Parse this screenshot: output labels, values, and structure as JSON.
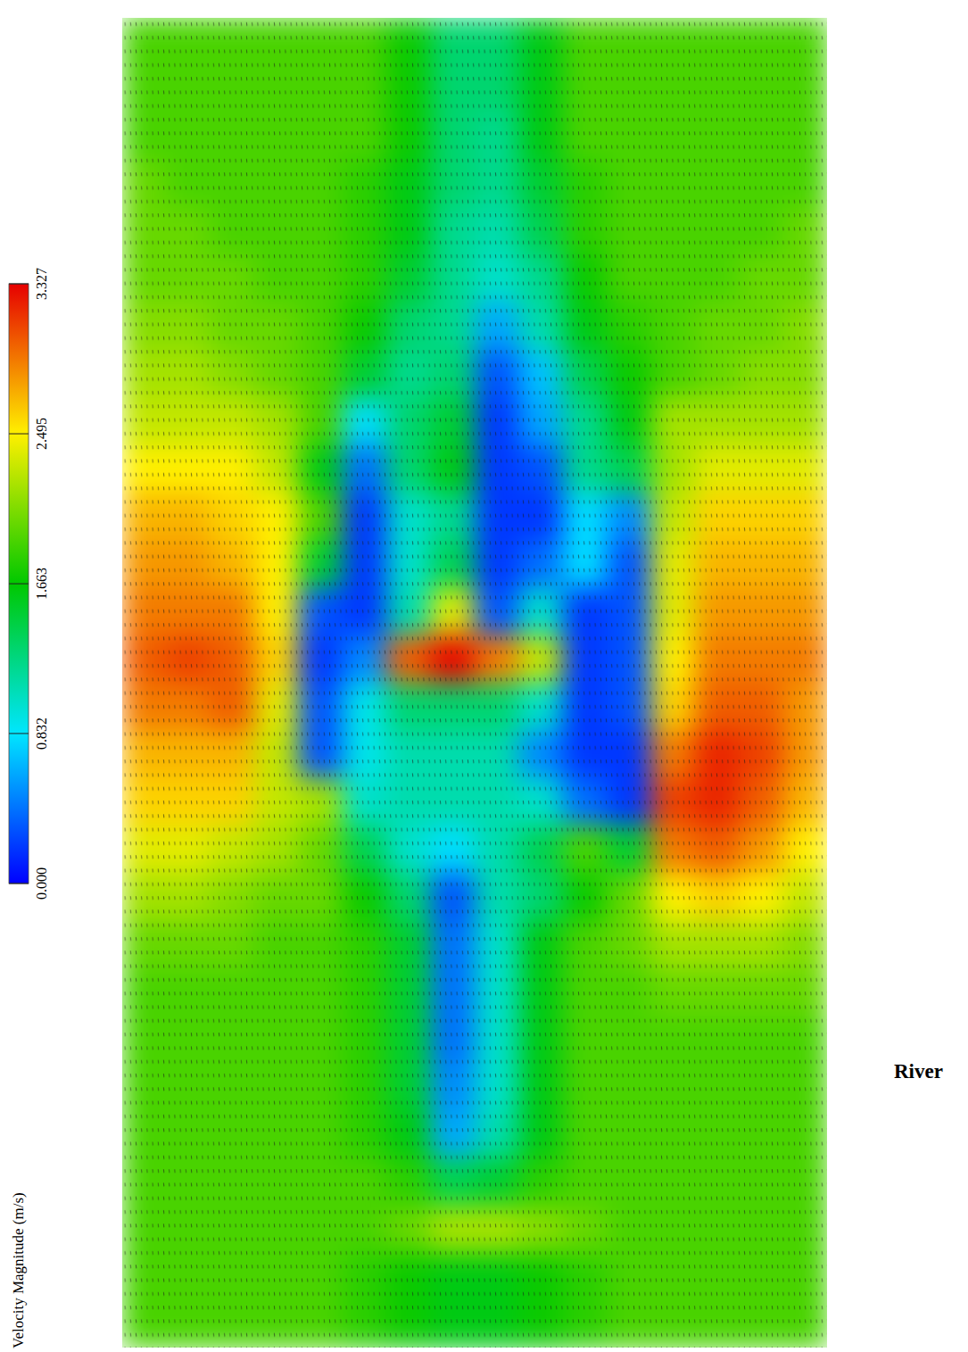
{
  "chart_data": {
    "type": "heatmap",
    "colorbar_title": "Velocity Magnitude (m/s)",
    "annotations": [
      "River"
    ],
    "tick_labels": false,
    "color_range": [
      0,
      3.327
    ],
    "color_ticks": [
      {
        "value": 0,
        "label": "0.000"
      },
      0.832,
      1.663,
      2.495,
      3.327
    ],
    "cells": [
      [
        1.9,
        1.9,
        1.9,
        1.9,
        1.9,
        1.9,
        1.7,
        1.3,
        1.3,
        1.6,
        1.9,
        1.9,
        1.9,
        1.9,
        1.9,
        1.9
      ],
      [
        1.9,
        1.9,
        1.9,
        1.9,
        1.9,
        1.9,
        1.7,
        1.3,
        1.3,
        1.6,
        1.9,
        1.9,
        1.9,
        1.9,
        1.9,
        1.9
      ],
      [
        1.9,
        1.9,
        1.9,
        1.9,
        1.9,
        1.9,
        1.7,
        1.3,
        1.2,
        1.6,
        1.9,
        1.9,
        1.9,
        1.9,
        1.9,
        1.9
      ],
      [
        2.0,
        1.9,
        1.9,
        1.9,
        1.9,
        1.8,
        1.6,
        1.3,
        1.2,
        1.5,
        1.8,
        1.9,
        1.9,
        1.9,
        1.9,
        1.9
      ],
      [
        2.0,
        2.0,
        1.9,
        1.9,
        1.9,
        1.8,
        1.6,
        1.2,
        1.1,
        1.4,
        1.8,
        1.9,
        1.9,
        1.9,
        1.9,
        2.0
      ],
      [
        2.0,
        2.0,
        2.0,
        1.9,
        1.9,
        1.8,
        1.5,
        1.2,
        1.0,
        1.2,
        1.7,
        1.9,
        1.9,
        1.9,
        2.0,
        2.0
      ],
      [
        2.1,
        2.1,
        2.0,
        2.0,
        1.9,
        1.7,
        1.3,
        1.2,
        0.6,
        1.1,
        1.6,
        1.8,
        1.9,
        2.0,
        2.0,
        2.1
      ],
      [
        2.2,
        2.2,
        2.1,
        2.0,
        1.9,
        1.5,
        1.2,
        1.3,
        0.3,
        0.7,
        1.4,
        1.7,
        1.9,
        2.0,
        2.1,
        2.1
      ],
      [
        2.3,
        2.3,
        2.3,
        2.2,
        1.9,
        0.8,
        1.3,
        1.5,
        0.2,
        0.6,
        1.2,
        1.6,
        2.2,
        2.2,
        2.2,
        2.2
      ],
      [
        2.5,
        2.5,
        2.5,
        2.3,
        1.6,
        0.4,
        1.3,
        1.6,
        0.2,
        0.3,
        1.2,
        1.4,
        2.2,
        2.4,
        2.4,
        2.4
      ],
      [
        2.7,
        2.7,
        2.6,
        2.5,
        1.9,
        0.2,
        1.0,
        1.2,
        0.2,
        0.2,
        0.8,
        0.5,
        2.3,
        2.6,
        2.6,
        2.6
      ],
      [
        2.8,
        2.8,
        2.7,
        2.5,
        1.5,
        0.2,
        1.0,
        1.4,
        0.2,
        0.4,
        0.8,
        0.3,
        2.4,
        2.7,
        2.7,
        2.7
      ],
      [
        2.9,
        2.9,
        2.9,
        2.5,
        0.3,
        0.2,
        1.1,
        2.4,
        0.3,
        1.0,
        0.2,
        0.3,
        2.4,
        2.8,
        2.8,
        2.8
      ],
      [
        3.0,
        3.1,
        3.0,
        2.6,
        0.2,
        0.5,
        3.0,
        3.3,
        2.9,
        2.3,
        0.2,
        0.3,
        2.5,
        2.9,
        2.9,
        2.9
      ],
      [
        2.9,
        2.9,
        3.0,
        2.4,
        0.3,
        0.9,
        1.3,
        1.3,
        1.3,
        1.0,
        0.2,
        0.3,
        2.6,
        3.0,
        3.0,
        2.8
      ],
      [
        2.7,
        2.7,
        2.7,
        2.3,
        0.3,
        0.9,
        1.1,
        1.1,
        1.1,
        0.5,
        0.2,
        0.2,
        2.9,
        3.2,
        3.1,
        2.8
      ],
      [
        2.6,
        2.6,
        2.6,
        2.3,
        2.2,
        1.0,
        1.1,
        1.1,
        1.1,
        1.0,
        0.4,
        0.2,
        3.1,
        3.2,
        3.0,
        2.7
      ],
      [
        2.4,
        2.4,
        2.3,
        2.2,
        2.0,
        1.4,
        1.0,
        0.8,
        1.1,
        1.4,
        1.9,
        1.5,
        2.9,
        3.0,
        2.8,
        2.5
      ],
      [
        2.2,
        2.2,
        2.1,
        2.0,
        2.0,
        1.7,
        1.3,
        0.3,
        1.1,
        1.3,
        1.7,
        2.0,
        2.5,
        2.6,
        2.5,
        2.3
      ],
      [
        2.0,
        2.0,
        2.0,
        1.9,
        1.9,
        1.8,
        1.5,
        0.4,
        1.0,
        1.6,
        1.9,
        2.0,
        2.2,
        2.2,
        2.2,
        2.1
      ],
      [
        1.9,
        1.9,
        1.9,
        1.9,
        1.9,
        1.8,
        1.5,
        0.4,
        1.0,
        1.6,
        1.9,
        1.9,
        2.0,
        2.0,
        2.0,
        2.0
      ],
      [
        1.9,
        1.9,
        1.9,
        1.9,
        1.9,
        1.8,
        1.5,
        0.4,
        1.0,
        1.6,
        1.9,
        1.9,
        1.9,
        1.9,
        1.9,
        1.9
      ],
      [
        1.9,
        1.9,
        1.9,
        1.9,
        1.9,
        1.8,
        1.5,
        0.5,
        1.0,
        1.6,
        1.9,
        1.9,
        1.9,
        1.9,
        1.9,
        1.9
      ],
      [
        1.9,
        1.9,
        1.9,
        1.9,
        1.9,
        1.8,
        1.6,
        0.6,
        1.1,
        1.6,
        1.9,
        1.9,
        1.9,
        1.9,
        1.9,
        1.9
      ],
      [
        1.9,
        1.9,
        1.9,
        1.9,
        1.9,
        1.9,
        1.8,
        1.4,
        1.5,
        1.8,
        1.9,
        1.9,
        1.9,
        1.9,
        1.9,
        1.9
      ],
      [
        1.9,
        1.9,
        1.9,
        1.9,
        1.9,
        1.9,
        2.0,
        2.2,
        2.2,
        2.1,
        2.0,
        1.9,
        1.9,
        1.9,
        1.9,
        1.9
      ],
      [
        1.9,
        1.9,
        1.9,
        1.9,
        1.9,
        1.8,
        1.7,
        1.6,
        1.6,
        1.7,
        1.8,
        1.9,
        1.9,
        1.9,
        1.9,
        1.9
      ],
      [
        1.9,
        1.9,
        1.9,
        1.9,
        1.9,
        1.8,
        1.7,
        1.6,
        1.6,
        1.7,
        1.8,
        1.9,
        1.9,
        1.9,
        1.9,
        1.9
      ]
    ]
  }
}
